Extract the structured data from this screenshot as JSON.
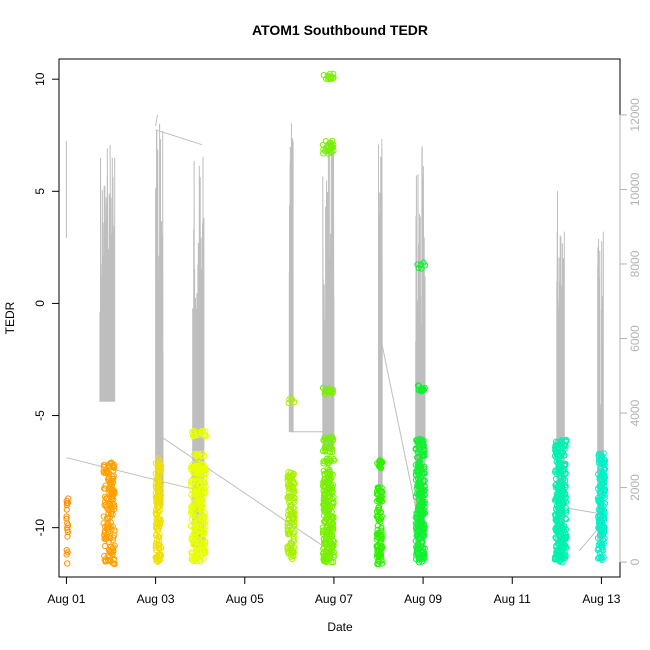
{
  "chart_data": {
    "type": "scatter",
    "title": "ATOM1 Southbound TEDR",
    "xlabel": "Date",
    "ylabel": "TEDR",
    "xlim": [
      "2022-07-31T20:00",
      "2022-08-13T10:00"
    ],
    "ylim": [
      -12.2,
      10.9
    ],
    "y2lim": [
      -400,
      13500
    ],
    "x_ticks": [
      {
        "x": "2022-08-01T00:00",
        "label": "Aug 01"
      },
      {
        "x": "2022-08-03T00:00",
        "label": "Aug 03"
      },
      {
        "x": "2022-08-05T00:00",
        "label": "Aug 05"
      },
      {
        "x": "2022-08-07T00:00",
        "label": "Aug 07"
      },
      {
        "x": "2022-08-09T00:00",
        "label": "Aug 09"
      },
      {
        "x": "2022-08-11T00:00",
        "label": "Aug 11"
      },
      {
        "x": "2022-08-13T00:00",
        "label": "Aug 13"
      }
    ],
    "y_ticks": [
      {
        "y": 10,
        "label": "10"
      },
      {
        "y": 5,
        "label": "5"
      },
      {
        "y": 0,
        "label": "0"
      },
      {
        "y": -5,
        "label": "-5"
      },
      {
        "y": -10,
        "label": "-10"
      }
    ],
    "y2_ticks": [
      {
        "y": 0,
        "label": "0"
      },
      {
        "y": 2000,
        "label": "2000"
      },
      {
        "y": 4000,
        "label": "4000"
      },
      {
        "y": 6000,
        "label": "6000"
      },
      {
        "y": 8000,
        "label": "8000"
      },
      {
        "y": 10000,
        "label": "10000"
      },
      {
        "y": 12000,
        "label": "12000"
      }
    ],
    "grid": false,
    "legend": "none",
    "colors": {
      "axis": "#000000",
      "secondary_axis": "#b3b3b3",
      "line_series": "#bebebe"
    },
    "point_series": [
      {
        "x_start": "2022-08-01T00:00",
        "x_end": "2022-08-01T01:00",
        "n": 18,
        "color": "#ff8c00",
        "y_values": [
          -11.6,
          -11.1,
          -10.2,
          -10.0,
          -9.8,
          -9.6,
          -9.0,
          -8.9,
          -8.7,
          -11.2,
          -9.9,
          -10.1,
          -8.8,
          -9.2,
          -10.4,
          -11.0,
          -9.5,
          -8.9
        ]
      },
      {
        "x_start": "2022-08-01T20:00",
        "x_end": "2022-08-02T02:00",
        "n": 150,
        "color": "#ffa000",
        "y_values": [
          -11.5,
          -11.3,
          -11.0,
          -10.8,
          -10.5,
          -10.2,
          -10.0,
          -9.8,
          -9.5,
          -9.2,
          -9.0,
          -8.7,
          -8.4,
          -8.2,
          -7.9,
          -7.6,
          -7.3,
          -7.2
        ]
      },
      {
        "x_start": "2022-08-03T00:00",
        "x_end": "2022-08-03T03:00",
        "n": 120,
        "color": "#f0e000",
        "y_values": [
          -11.4,
          -11.2,
          -10.9,
          -10.6,
          -10.3,
          -10.0,
          -9.7,
          -9.4,
          -9.1,
          -8.8,
          -8.6,
          -8.3,
          -8.0,
          -7.7,
          -7.3,
          -7.0
        ]
      },
      {
        "x_start": "2022-08-03T19:00",
        "x_end": "2022-08-04T03:00",
        "n": 260,
        "color": "#e8ff00",
        "y_values": [
          -11.4,
          -11.2,
          -11.0,
          -10.7,
          -10.5,
          -10.2,
          -10.0,
          -9.7,
          -9.5,
          -9.2,
          -9.0,
          -8.7,
          -8.4,
          -8.1,
          -7.8,
          -7.5,
          -7.3,
          -6.8,
          -5.8
        ]
      },
      {
        "x_start": "2022-08-05T23:00",
        "x_end": "2022-08-06T03:00",
        "n": 120,
        "color": "#a8f000",
        "y_values": [
          -11.4,
          -11.1,
          -10.8,
          -10.5,
          -10.2,
          -9.9,
          -9.6,
          -9.3,
          -9.0,
          -8.7,
          -8.4,
          -8.1,
          -7.8,
          -7.6,
          -4.4
        ]
      },
      {
        "x_start": "2022-08-06T18:00",
        "x_end": "2022-08-07T00:00",
        "n": 320,
        "color": "#78f000",
        "y_values": [
          -11.4,
          -11.2,
          -11.0,
          -10.8,
          -10.5,
          -10.2,
          -10.0,
          -9.7,
          -9.4,
          -9.1,
          -8.8,
          -8.5,
          -8.2,
          -7.9,
          -7.5,
          -7.0,
          -6.5,
          -6.1,
          -3.9,
          6.8,
          7.1,
          10.1
        ]
      },
      {
        "x_start": "2022-08-07T23:00",
        "x_end": "2022-08-08T02:00",
        "n": 110,
        "color": "#30f000",
        "y_values": [
          -11.5,
          -11.2,
          -11.0,
          -10.8,
          -10.5,
          -10.3,
          -10.0,
          -9.6,
          -9.2,
          -8.8,
          -8.5,
          -8.2,
          -7.2,
          -7.0
        ]
      },
      {
        "x_start": "2022-08-08T20:00",
        "x_end": "2022-08-09T01:00",
        "n": 260,
        "color": "#10f030",
        "y_values": [
          -11.4,
          -11.2,
          -11.0,
          -10.8,
          -10.5,
          -10.2,
          -10.0,
          -9.7,
          -9.4,
          -9.1,
          -8.8,
          -8.5,
          -8.2,
          -7.9,
          -7.5,
          -7.2,
          -6.8,
          -6.5,
          -6.2,
          -3.8,
          1.7
        ]
      },
      {
        "x_start": "2022-08-11T23:00",
        "x_end": "2022-08-12T05:00",
        "n": 300,
        "color": "#00f0b0",
        "y_values": [
          -11.4,
          -11.2,
          -11.0,
          -10.8,
          -10.5,
          -10.2,
          -10.0,
          -9.7,
          -9.4,
          -9.1,
          -8.8,
          -8.5,
          -8.2,
          -7.9,
          -7.5,
          -7.2,
          -6.8,
          -6.5,
          -6.2
        ]
      },
      {
        "x_start": "2022-08-12T22:00",
        "x_end": "2022-08-13T02:00",
        "n": 160,
        "color": "#00f0c8",
        "y_values": [
          -11.3,
          -11.0,
          -10.7,
          -10.4,
          -10.1,
          -9.8,
          -9.5,
          -9.2,
          -8.9,
          -8.6,
          -8.3,
          -8.0,
          -7.7,
          -7.4,
          -7.1,
          -6.8
        ]
      }
    ],
    "line_series": {
      "axis": "right",
      "points": [
        {
          "x": "2022-08-01T00:00",
          "y": 8700
        },
        {
          "x": "2022-08-01T00:00",
          "y": 11300
        },
        {
          "x": "2022-08-01T22:00",
          "y": 11100
        },
        {
          "x": "2022-08-01T22:30",
          "y": 4500
        },
        {
          "x": "2022-08-01T23:30",
          "y": 11200
        },
        {
          "x": "2022-08-02T00:00",
          "y": 4400
        },
        {
          "x": "2022-08-01T00:00",
          "y": 2800
        },
        {
          "x": "2022-08-04T01:00",
          "y": 1900
        },
        {
          "x": "2022-08-03T00:00",
          "y": 11700
        },
        {
          "x": "2022-08-03T01:00",
          "y": 12000
        },
        {
          "x": "2022-08-03T02:00",
          "y": 3400
        },
        {
          "x": "2022-08-06T22:00",
          "y": 300
        },
        {
          "x": "2022-08-06T00:00",
          "y": 3500
        },
        {
          "x": "2022-08-06T23:00",
          "y": 3500
        },
        {
          "x": "2022-08-03T00:00",
          "y": 11600
        },
        {
          "x": "2022-08-04T01:00",
          "y": 11200
        },
        {
          "x": "2022-08-09T00:00",
          "y": 500
        },
        {
          "x": "2022-08-08T00:00",
          "y": 6300
        },
        {
          "x": "2022-08-12T23:00",
          "y": 1300
        },
        {
          "x": "2022-08-12T00:00",
          "y": 1500
        },
        {
          "x": "2022-08-12T12:00",
          "y": 300
        },
        {
          "x": "2022-08-13T00:00",
          "y": 1000
        }
      ],
      "spikes": [
        {
          "x_start": "2022-08-01T18:00",
          "x_end": "2022-08-02T02:00",
          "peak": 11200,
          "base": 4300
        },
        {
          "x_start": "2022-08-03T00:00",
          "x_end": "2022-08-03T04:00",
          "peak": 12200,
          "base": 1500
        },
        {
          "x_start": "2022-08-03T20:00",
          "x_end": "2022-08-04T02:00",
          "peak": 11300,
          "base": 400
        },
        {
          "x_start": "2022-08-06T00:00",
          "x_end": "2022-08-06T02:00",
          "peak": 11800,
          "base": 3500
        },
        {
          "x_start": "2022-08-06T18:00",
          "x_end": "2022-08-07T00:00",
          "peak": 11700,
          "base": 3000
        },
        {
          "x_start": "2022-08-08T00:00",
          "x_end": "2022-08-08T02:00",
          "peak": 11400,
          "base": 1500
        },
        {
          "x_start": "2022-08-08T20:00",
          "x_end": "2022-08-09T01:00",
          "peak": 11200,
          "base": 400
        },
        {
          "x_start": "2022-08-12T00:00",
          "x_end": "2022-08-12T04:00",
          "peak": 10300,
          "base": 600
        },
        {
          "x_start": "2022-08-12T22:00",
          "x_end": "2022-08-13T01:00",
          "peak": 8900,
          "base": 600
        }
      ]
    }
  }
}
